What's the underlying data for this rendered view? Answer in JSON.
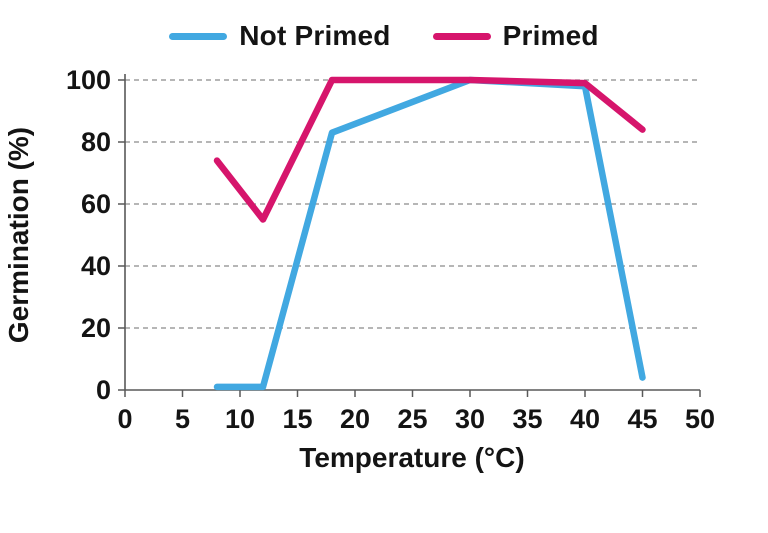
{
  "chart_data": {
    "type": "line",
    "title": "",
    "xlabel": "Temperature (°C)",
    "ylabel": "Germination (%)",
    "xlim": [
      0,
      50
    ],
    "ylim": [
      0,
      100
    ],
    "x_ticks": [
      0,
      5,
      10,
      15,
      20,
      25,
      30,
      35,
      40,
      45,
      50
    ],
    "y_ticks": [
      0,
      20,
      40,
      60,
      80,
      100
    ],
    "grid": "horizontal-dashed",
    "legend_position": "top-center",
    "series": [
      {
        "name": "Not Primed",
        "color": "#41A8E1",
        "x": [
          8,
          12,
          18,
          30,
          40,
          45
        ],
        "y": [
          1,
          1,
          83,
          100,
          98,
          4
        ]
      },
      {
        "name": "Primed",
        "color": "#D6156C",
        "x": [
          8,
          12,
          18,
          30,
          40,
          45
        ],
        "y": [
          74,
          55,
          100,
          100,
          99,
          84
        ]
      }
    ]
  },
  "legend": {
    "items": [
      {
        "label": "Not Primed",
        "color": "#41A8E1"
      },
      {
        "label": "Primed",
        "color": "#D6156C"
      }
    ]
  },
  "colors": {
    "grid": "#8a8a8a",
    "axis": "#595959",
    "text": "#141414",
    "background": "#ffffff"
  }
}
